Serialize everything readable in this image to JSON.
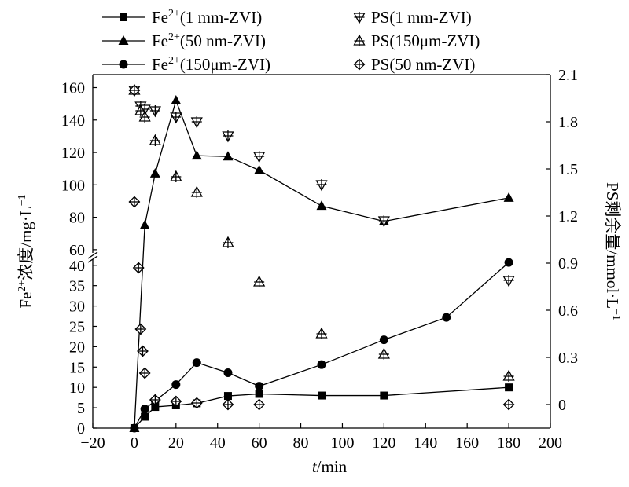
{
  "chart_data": {
    "type": "line",
    "x_axis": {
      "label_italic": "t",
      "label_rest": "/min",
      "range": [
        -20,
        200
      ],
      "ticks": [
        -20,
        0,
        20,
        40,
        60,
        80,
        100,
        120,
        140,
        160,
        180,
        200
      ]
    },
    "y_left": {
      "label_main": "Fe",
      "label_sup": "2+",
      "label_rest": "浓度/mg·L",
      "label_exp": "−1",
      "segments": [
        {
          "range": [
            0,
            41.5
          ],
          "ticks": [
            0,
            5,
            10,
            15,
            20,
            25,
            30,
            35,
            40
          ]
        },
        {
          "range": [
            58,
            168
          ],
          "ticks": [
            60,
            80,
            100,
            120,
            140,
            160
          ]
        }
      ],
      "break_at": 41.5
    },
    "y_right": {
      "label_main": "PS剩余量/mmol·L",
      "label_exp": "−1",
      "range": [
        -0.15,
        2.1
      ],
      "ticks": [
        "0",
        "0.3",
        "0.6",
        "0.9",
        "1.2",
        "1.5",
        "1.8",
        "2.1"
      ],
      "tick_values": [
        0,
        0.3,
        0.6,
        0.9,
        1.2,
        1.5,
        1.8,
        2.1
      ]
    },
    "legend": {
      "placement": "top",
      "entries": [
        {
          "id": "fe_1mm",
          "main": "Fe",
          "sup": "2+",
          "rest": "(1 mm-ZVI)"
        },
        {
          "id": "fe_50nm",
          "main": "Fe",
          "sup": "2+",
          "rest": "(50 nm-ZVI)"
        },
        {
          "id": "fe_150um",
          "main": "Fe",
          "sup": "2+",
          "rest": "(150μm-ZVI)"
        },
        {
          "id": "ps_1mm",
          "main": "PS",
          "sup": "",
          "rest": "(1 mm-ZVI)"
        },
        {
          "id": "ps_150um",
          "main": "PS",
          "sup": "",
          "rest": "(150μm-ZVI)"
        },
        {
          "id": "ps_50nm",
          "main": "PS",
          "sup": "",
          "rest": "(50 nm-ZVI)"
        }
      ]
    },
    "series": [
      {
        "id": "fe_1mm",
        "axis": "left",
        "marker": "square",
        "line": true,
        "x": [
          0,
          5,
          10,
          20,
          30,
          45,
          60,
          90,
          120,
          180
        ],
        "y": [
          0,
          2.8,
          5.2,
          5.6,
          6.1,
          7.9,
          8.4,
          8.0,
          8.0,
          10.0
        ]
      },
      {
        "id": "fe_50nm",
        "axis": "left",
        "marker": "triangle",
        "line": true,
        "x": [
          0,
          5,
          10,
          20,
          30,
          45,
          60,
          90,
          120,
          180
        ],
        "y": [
          0,
          75,
          107,
          152,
          118,
          117.5,
          109,
          87,
          77.5,
          92
        ]
      },
      {
        "id": "fe_150um",
        "axis": "left",
        "marker": "circle",
        "line": true,
        "x": [
          0,
          5,
          10,
          20,
          30,
          45,
          60,
          90,
          120,
          150,
          180
        ],
        "y": [
          0,
          4.7,
          6.7,
          10.7,
          16.1,
          13.6,
          10.3,
          15.6,
          21.7,
          27.2,
          40.7
        ]
      },
      {
        "id": "ps_1mm",
        "axis": "right",
        "marker": "tri-down-cross",
        "line": false,
        "x": [
          0,
          3,
          5,
          10,
          20,
          30,
          45,
          60,
          90,
          120,
          180
        ],
        "y": [
          2.0,
          1.9,
          1.88,
          1.87,
          1.83,
          1.8,
          1.71,
          1.58,
          1.4,
          1.17,
          0.79
        ]
      },
      {
        "id": "ps_150um",
        "axis": "right",
        "marker": "tri-up-cross",
        "line": false,
        "x": [
          0,
          3,
          5,
          10,
          20,
          30,
          45,
          60,
          90,
          120,
          180
        ],
        "y": [
          2.0,
          1.87,
          1.83,
          1.68,
          1.45,
          1.35,
          1.03,
          0.78,
          0.45,
          0.32,
          0.18
        ]
      },
      {
        "id": "ps_50nm",
        "axis": "right",
        "marker": "diamond-cross",
        "line": false,
        "x": [
          0,
          0,
          2,
          3,
          4,
          5,
          10,
          20,
          30,
          45,
          60,
          180
        ],
        "y": [
          2.0,
          1.29,
          0.87,
          0.48,
          0.34,
          0.2,
          0.03,
          0.02,
          0.01,
          0.0,
          0.0,
          0.0
        ]
      }
    ]
  }
}
